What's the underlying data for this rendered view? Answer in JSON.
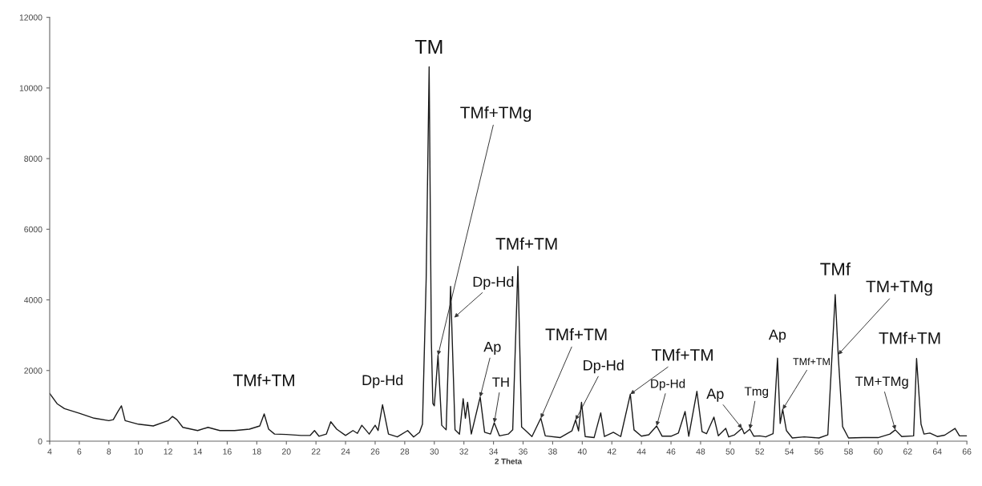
{
  "chart_data": {
    "type": "line",
    "xlabel": "2 Theta",
    "x": [
      4,
      4.5,
      5,
      6,
      7,
      8,
      8.3,
      8.6,
      8.85,
      9.1,
      10,
      11,
      12,
      12.3,
      12.6,
      13,
      14,
      14.7,
      15.5,
      16.5,
      17.5,
      18.2,
      18.5,
      18.8,
      19.2,
      20,
      21,
      21.6,
      21.9,
      22.2,
      22.7,
      23.0,
      23.4,
      24,
      24.5,
      24.8,
      25.1,
      25.6,
      26.0,
      26.2,
      26.5,
      26.9,
      27.5,
      28.2,
      28.6,
      29.0,
      29.2,
      29.45,
      29.65,
      29.8,
      29.9,
      30.0,
      30.25,
      30.5,
      30.8,
      31.1,
      31.4,
      31.7,
      31.95,
      32.1,
      32.25,
      32.5,
      33.1,
      33.4,
      33.8,
      34.05,
      34.4,
      35.0,
      35.3,
      35.65,
      35.9,
      36.2,
      36.6,
      37.2,
      37.5,
      38.5,
      39.3,
      39.55,
      39.75,
      39.95,
      40.2,
      40.8,
      41.25,
      41.5,
      42.1,
      42.6,
      43.25,
      43.5,
      44,
      44.5,
      45.03,
      45.4,
      46.0,
      46.5,
      46.95,
      47.2,
      47.75,
      48.1,
      48.4,
      48.9,
      49.2,
      49.7,
      49.9,
      50.3,
      50.8,
      50.95,
      51.33,
      51.6,
      52.0,
      52.4,
      52.9,
      53.2,
      53.38,
      53.55,
      53.8,
      54.2,
      55,
      56,
      56.6,
      57.1,
      57.3,
      57.6,
      58,
      59,
      60,
      60.8,
      61.16,
      61.6,
      62.4,
      62.6,
      62.9,
      63.1,
      63.5,
      64,
      64.5,
      65.2,
      65.5,
      66
    ],
    "series": [
      {
        "color": "#1a1a1a",
        "values": [
          1350,
          1060,
          920,
          790,
          650,
          580,
          610,
          830,
          1000,
          580,
          480,
          430,
          580,
          700,
          610,
          390,
          300,
          390,
          300,
          300,
          340,
          430,
          770,
          340,
          200,
          190,
          160,
          160,
          300,
          140,
          200,
          550,
          340,
          160,
          300,
          220,
          450,
          200,
          450,
          300,
          1030,
          200,
          120,
          300,
          120,
          250,
          480,
          4600,
          10600,
          2840,
          1070,
          1000,
          2430,
          450,
          320,
          4380,
          320,
          200,
          1200,
          650,
          1100,
          200,
          1250,
          250,
          200,
          520,
          150,
          200,
          320,
          4950,
          400,
          290,
          130,
          650,
          150,
          100,
          290,
          600,
          290,
          1100,
          130,
          100,
          800,
          130,
          250,
          130,
          1330,
          320,
          140,
          180,
          430,
          140,
          140,
          230,
          840,
          140,
          1410,
          270,
          210,
          680,
          150,
          360,
          120,
          180,
          360,
          210,
          340,
          140,
          150,
          120,
          210,
          2350,
          500,
          900,
          300,
          90,
          120,
          90,
          180,
          4150,
          2450,
          410,
          90,
          100,
          100,
          200,
          320,
          130,
          150,
          2340,
          480,
          200,
          230,
          130,
          170,
          360,
          150,
          150
        ]
      }
    ],
    "xlim": [
      4,
      66
    ],
    "xticks": [
      4,
      6,
      8,
      10,
      12,
      14,
      16,
      18,
      20,
      22,
      24,
      26,
      28,
      30,
      32,
      34,
      36,
      38,
      40,
      42,
      44,
      46,
      48,
      50,
      52,
      54,
      56,
      58,
      60,
      62,
      64,
      66
    ],
    "ylim": [
      0,
      12000
    ],
    "yticks": [
      0,
      2000,
      4000,
      6000,
      8000,
      10000,
      12000
    ],
    "grid": false,
    "legend": false,
    "marker": "none",
    "line_style": "solid",
    "annotations": [
      {
        "text": "TMf+TM",
        "x": 18.5,
        "y": 770
      },
      {
        "text": "Dp-Hd",
        "x": 26.5,
        "y": 1030
      },
      {
        "text": "TM",
        "x": 29.65,
        "y": 10600
      },
      {
        "text": "TMf+TMg",
        "x": 30.25,
        "y": 2430
      },
      {
        "text": "Dp-Hd",
        "x": 31.35,
        "y": 3500
      },
      {
        "text": "Ap",
        "x": 33.1,
        "y": 1250
      },
      {
        "text": "TH",
        "x": 34.05,
        "y": 520
      },
      {
        "text": "TMf+TM",
        "x": 35.65,
        "y": 4950
      },
      {
        "text": "TMf+TM",
        "x": 37.2,
        "y": 650
      },
      {
        "text": "Dp-Hd",
        "x": 39.55,
        "y": 600
      },
      {
        "text": "TMf+TM",
        "x": 43.25,
        "y": 1330
      },
      {
        "text": "Dp-Hd",
        "x": 45.03,
        "y": 430
      },
      {
        "text": "Ap",
        "x": 50.8,
        "y": 360
      },
      {
        "text": "Tmg",
        "x": 51.33,
        "y": 340
      },
      {
        "text": "Ap",
        "x": 53.2,
        "y": 2350
      },
      {
        "text": "TMf+TM",
        "x": 53.55,
        "y": 900
      },
      {
        "text": "TMf",
        "x": 57.1,
        "y": 4150
      },
      {
        "text": "TM+TMg",
        "x": 57.3,
        "y": 2450
      },
      {
        "text": "TM+TMg",
        "x": 61.16,
        "y": 320
      },
      {
        "text": "TMf+TM",
        "x": 62.6,
        "y": 2340
      }
    ]
  }
}
